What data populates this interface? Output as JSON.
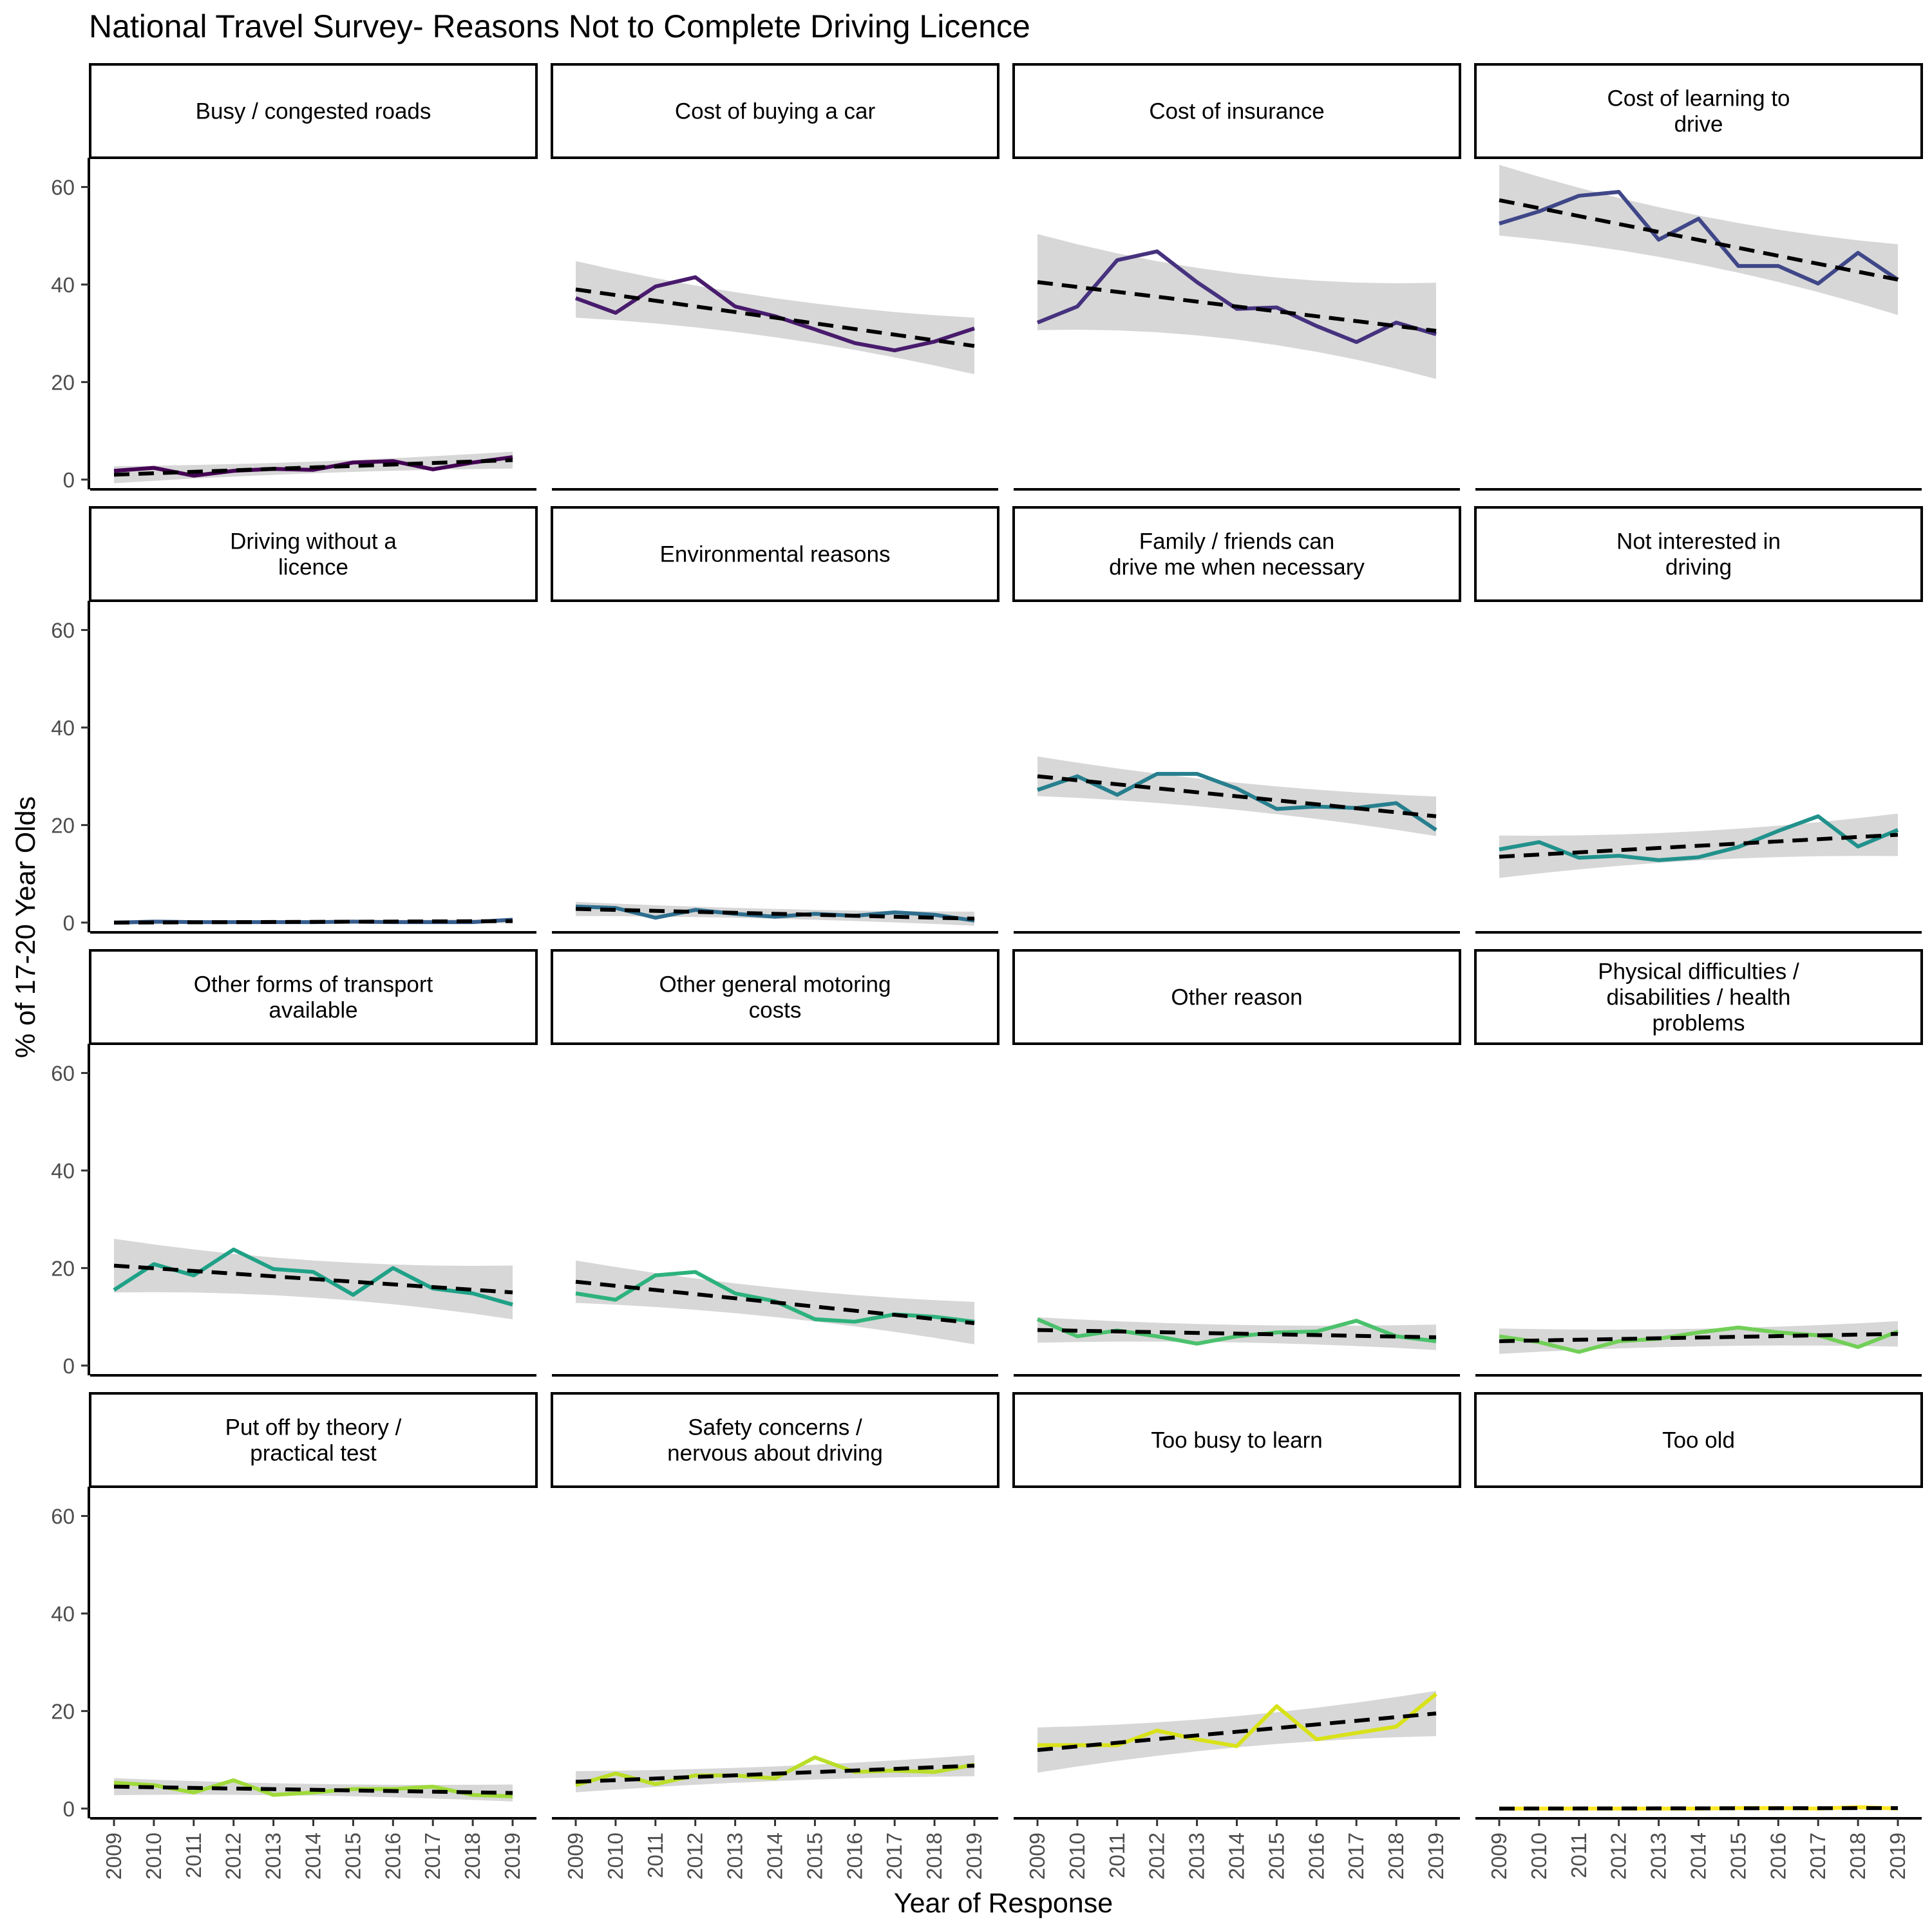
{
  "chart_data": {
    "type": "line",
    "title": "National Travel Survey- Reasons Not to Complete Driving Licence",
    "xlabel": "Year of Response",
    "ylabel": "% of 17-20 Year Olds",
    "x": [
      2009,
      2010,
      2011,
      2012,
      2013,
      2014,
      2015,
      2016,
      2017,
      2018,
      2019
    ],
    "ylim": [
      -2,
      66
    ],
    "yticks": [
      0,
      20,
      40,
      60
    ],
    "grid": false,
    "legend": "none",
    "facet_layout": "4 columns x 4 rows",
    "trend_line": "dashed linear fit with grey confidence band",
    "trend_color": "#000000",
    "band_color": "#d3d3d3",
    "panels": [
      {
        "name": "Busy / congested roads",
        "label_lines": [
          "Busy / congested roads"
        ],
        "color": "#440154",
        "values": [
          1.8,
          2.4,
          0.8,
          1.8,
          2.2,
          2.0,
          3.5,
          3.8,
          2.1,
          3.5,
          4.6
        ],
        "trend": [
          1.0,
          4.0
        ],
        "band": [
          1.2,
          1.5
        ]
      },
      {
        "name": "Cost of buying a car",
        "label_lines": [
          "Cost of buying a car"
        ],
        "color": "#481b6d",
        "values": [
          37.2,
          34.2,
          39.6,
          41.5,
          35.5,
          33.5,
          30.8,
          28.0,
          26.5,
          28.3,
          31.0
        ],
        "trend": [
          39.0,
          27.4
        ],
        "band": [
          4.0,
          4.0
        ]
      },
      {
        "name": "Cost of insurance",
        "label_lines": [
          "Cost of insurance"
        ],
        "color": "#46327e",
        "values": [
          32.2,
          35.5,
          45.0,
          46.8,
          40.5,
          35.0,
          35.3,
          31.5,
          28.2,
          32.2,
          29.8
        ],
        "trend": [
          40.5,
          30.5
        ],
        "band": [
          6.8,
          6.8
        ]
      },
      {
        "name": "Cost of learning to drive",
        "label_lines": [
          "Cost of learning to",
          "drive"
        ],
        "color": "#3f4788",
        "values": [
          52.5,
          55.0,
          58.2,
          59.0,
          49.2,
          53.5,
          43.8,
          43.8,
          40.2,
          46.5,
          41.0
        ],
        "trend": [
          57.3,
          41.0
        ],
        "band": [
          5.0,
          5.0
        ]
      },
      {
        "name": "Driving without a licence",
        "label_lines": [
          "Driving without a",
          "licence"
        ],
        "color": "#365c8d",
        "values": [
          0.0,
          0.2,
          0.1,
          0.1,
          0.1,
          0.1,
          0.2,
          0.1,
          0.1,
          0.1,
          0.6
        ],
        "trend": [
          0.0,
          0.3
        ],
        "band": [
          0.3,
          0.3
        ]
      },
      {
        "name": "Environmental reasons",
        "label_lines": [
          "Environmental reasons"
        ],
        "color": "#2e6e8e",
        "values": [
          3.3,
          3.0,
          1.0,
          2.6,
          1.8,
          1.2,
          1.8,
          1.4,
          2.1,
          1.6,
          0.4
        ],
        "trend": [
          2.8,
          0.8
        ],
        "band": [
          1.0,
          1.0
        ]
      },
      {
        "name": "Family / friends can drive me when necessary",
        "label_lines": [
          "Family / friends can",
          "drive me when necessary"
        ],
        "color": "#277f8e",
        "values": [
          27.2,
          30.0,
          26.2,
          30.5,
          30.5,
          27.5,
          23.3,
          23.8,
          23.5,
          24.5,
          19.0
        ],
        "trend": [
          30.0,
          21.8
        ],
        "band": [
          2.8,
          2.8
        ]
      },
      {
        "name": "Not interested in driving",
        "label_lines": [
          "Not interested in",
          "driving"
        ],
        "color": "#21918c",
        "values": [
          15.0,
          16.5,
          13.3,
          13.7,
          12.8,
          13.4,
          15.5,
          18.8,
          21.8,
          15.6,
          19.0
        ],
        "trend": [
          13.5,
          18.0
        ],
        "band": [
          3.0,
          3.0
        ]
      },
      {
        "name": "Other forms of transport available",
        "label_lines": [
          "Other forms of transport",
          "available"
        ],
        "color": "#1fa187",
        "values": [
          15.5,
          20.8,
          18.5,
          23.8,
          19.8,
          19.2,
          14.5,
          20.0,
          15.8,
          14.8,
          12.5
        ],
        "trend": [
          20.5,
          15.0
        ],
        "band": [
          3.8,
          3.8
        ]
      },
      {
        "name": "Other general motoring costs",
        "label_lines": [
          "Other general motoring",
          "costs"
        ],
        "color": "#2db27d",
        "values": [
          14.8,
          13.5,
          18.5,
          19.2,
          14.8,
          13.2,
          9.5,
          9.0,
          10.5,
          10.0,
          9.0
        ],
        "trend": [
          17.2,
          8.7
        ],
        "band": [
          3.0,
          3.0
        ]
      },
      {
        "name": "Other reason",
        "label_lines": [
          "Other reason"
        ],
        "color": "#4ac16d",
        "values": [
          9.5,
          6.0,
          7.2,
          6.0,
          4.5,
          6.0,
          6.8,
          7.0,
          9.2,
          6.0,
          5.0
        ],
        "trend": [
          7.3,
          5.8
        ],
        "band": [
          1.8,
          1.8
        ]
      },
      {
        "name": "Physical difficulties / disabilities / health problems",
        "label_lines": [
          "Physical difficulties /",
          "disabilities / health",
          "problems"
        ],
        "color": "#71cf57",
        "values": [
          6.0,
          4.8,
          2.8,
          5.0,
          5.5,
          6.8,
          7.8,
          6.8,
          6.2,
          3.8,
          7.0
        ],
        "trend": [
          5.0,
          6.5
        ],
        "band": [
          1.8,
          1.8
        ]
      },
      {
        "name": "Put off by theory / practical test",
        "label_lines": [
          "Put off by theory /",
          "practical test"
        ],
        "color": "#9fda3a",
        "values": [
          5.3,
          4.8,
          3.3,
          5.8,
          2.8,
          3.3,
          4.0,
          4.0,
          4.5,
          2.8,
          2.5
        ],
        "trend": [
          4.5,
          3.2
        ],
        "band": [
          1.2,
          1.2
        ]
      },
      {
        "name": "Safety concerns / nervous about driving",
        "label_lines": [
          "Safety concerns /",
          "nervous about driving"
        ],
        "color": "#bade28",
        "values": [
          4.8,
          7.2,
          5.0,
          6.8,
          6.8,
          6.2,
          10.5,
          7.5,
          7.8,
          7.5,
          9.0
        ],
        "trend": [
          5.5,
          8.8
        ],
        "band": [
          1.5,
          1.5
        ]
      },
      {
        "name": "Too busy to learn",
        "label_lines": [
          "Too busy to learn"
        ],
        "color": "#d8e219",
        "values": [
          13.0,
          13.0,
          13.0,
          16.0,
          14.2,
          12.8,
          21.0,
          14.2,
          15.5,
          16.8,
          23.5
        ],
        "trend": [
          12.0,
          19.5
        ],
        "band": [
          3.2,
          3.2
        ]
      },
      {
        "name": "Too old",
        "label_lines": [
          "Too old"
        ],
        "color": "#fde725",
        "values": [
          0.0,
          0.0,
          0.0,
          0.0,
          0.0,
          0.0,
          0.1,
          0.1,
          0.0,
          0.3,
          0.0
        ],
        "trend": [
          0.0,
          0.1
        ],
        "band": [
          0.2,
          0.2
        ]
      }
    ]
  }
}
